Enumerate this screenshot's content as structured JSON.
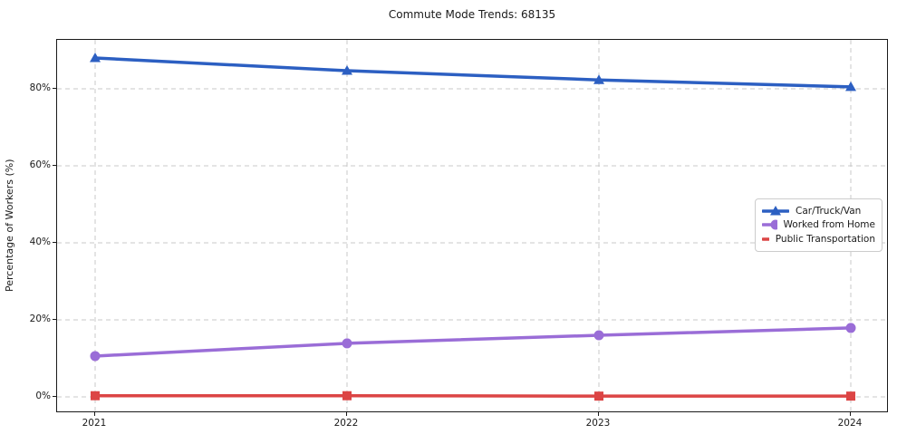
{
  "title": "Commute Mode Trends: 68135",
  "chart_data": {
    "type": "line",
    "title": "Commute Mode Trends: 68135",
    "xlabel": "",
    "ylabel": "Percentage of Workers (%)",
    "x": [
      2021,
      2022,
      2023,
      2024
    ],
    "xticks": [
      "2021",
      "2022",
      "2023",
      "2024"
    ],
    "yticks": [
      "0%",
      "20%",
      "40%",
      "60%",
      "80%"
    ],
    "ytick_values": [
      0,
      20,
      40,
      60,
      80
    ],
    "ylim": [
      -4.2,
      92.7
    ],
    "grid": true,
    "grid_style": "dashed",
    "grid_color": "#c8c8c8",
    "legend_position": "center right",
    "series": [
      {
        "name": "Car/Truck/Van",
        "marker": "triangle",
        "color": "#2c5fc2",
        "values": [
          88.0,
          84.7,
          82.3,
          80.5
        ]
      },
      {
        "name": "Worked from Home",
        "marker": "circle",
        "color": "#9a6dd7",
        "values": [
          10.6,
          13.9,
          16.0,
          17.9
        ]
      },
      {
        "name": "Public Transportation",
        "marker": "square",
        "color": "#dc4545",
        "values": [
          0.3,
          0.3,
          0.2,
          0.2
        ]
      }
    ]
  }
}
